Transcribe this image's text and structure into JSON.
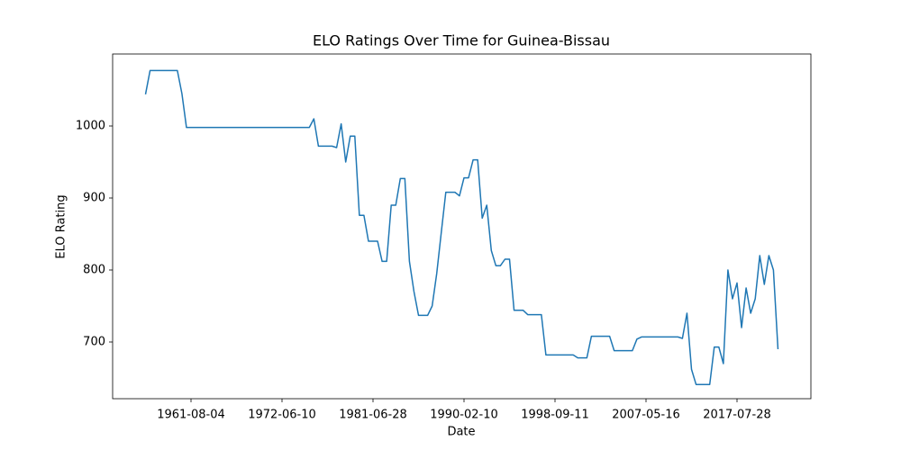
{
  "chart_data": {
    "type": "line",
    "title": "ELO Ratings Over Time for Guinea-Bissau",
    "x_label": "Date",
    "y_label": "ELO Rating",
    "color": "#1f77b4",
    "ylim": [
      621.25,
      1100
    ],
    "yticks": [
      700,
      800,
      900,
      1000
    ],
    "categories": [
      null,
      null,
      null,
      null,
      null,
      null,
      null,
      null,
      null,
      null,
      "1961-08-04",
      null,
      null,
      null,
      null,
      null,
      null,
      null,
      null,
      null,
      null,
      null,
      null,
      null,
      null,
      null,
      null,
      null,
      null,
      null,
      "1972-06-10",
      null,
      null,
      null,
      null,
      null,
      null,
      null,
      null,
      null,
      null,
      null,
      null,
      null,
      null,
      null,
      null,
      null,
      null,
      null,
      "1981-06-28",
      null,
      null,
      null,
      null,
      null,
      null,
      null,
      null,
      null,
      null,
      null,
      null,
      null,
      null,
      null,
      null,
      null,
      null,
      null,
      "1990-02-10",
      null,
      null,
      null,
      null,
      null,
      null,
      null,
      null,
      null,
      null,
      null,
      null,
      null,
      null,
      null,
      null,
      null,
      null,
      null,
      "1998-09-11",
      null,
      null,
      null,
      null,
      null,
      null,
      null,
      null,
      null,
      null,
      null,
      null,
      null,
      null,
      null,
      null,
      null,
      null,
      null,
      "2007-05-16",
      null,
      null,
      null,
      null,
      null,
      null,
      null,
      null,
      null,
      null,
      null,
      null,
      null,
      null,
      null,
      null,
      null,
      null,
      null,
      "2017-07-28",
      null,
      null,
      null,
      null,
      null,
      null,
      null,
      null,
      null
    ],
    "values": [
      1044,
      1077,
      1077,
      1077,
      1077,
      1077,
      1077,
      1077,
      1045,
      998,
      998,
      998,
      998,
      998,
      998,
      998,
      998,
      998,
      998,
      998,
      998,
      998,
      998,
      998,
      998,
      998,
      998,
      998,
      998,
      998,
      998,
      998,
      998,
      998,
      998,
      998,
      998,
      1010,
      972,
      972,
      972,
      972,
      970,
      1003,
      950,
      986,
      986,
      876,
      876,
      840,
      840,
      840,
      812,
      812,
      890,
      890,
      927,
      927,
      812,
      770,
      737,
      737,
      737,
      750,
      795,
      852,
      908,
      908,
      908,
      903,
      928,
      928,
      953,
      953,
      872,
      890,
      827,
      806,
      806,
      815,
      815,
      744,
      744,
      744,
      738,
      738,
      738,
      738,
      682,
      682,
      682,
      682,
      682,
      682,
      682,
      678,
      678,
      678,
      708,
      708,
      708,
      708,
      708,
      688,
      688,
      688,
      688,
      688,
      704,
      707,
      707,
      707,
      707,
      707,
      707,
      707,
      707,
      707,
      705,
      740,
      662,
      641,
      641,
      641,
      641,
      693,
      693,
      670,
      800,
      760,
      782,
      720,
      775,
      740,
      760,
      820,
      780,
      820,
      800,
      690
    ]
  }
}
